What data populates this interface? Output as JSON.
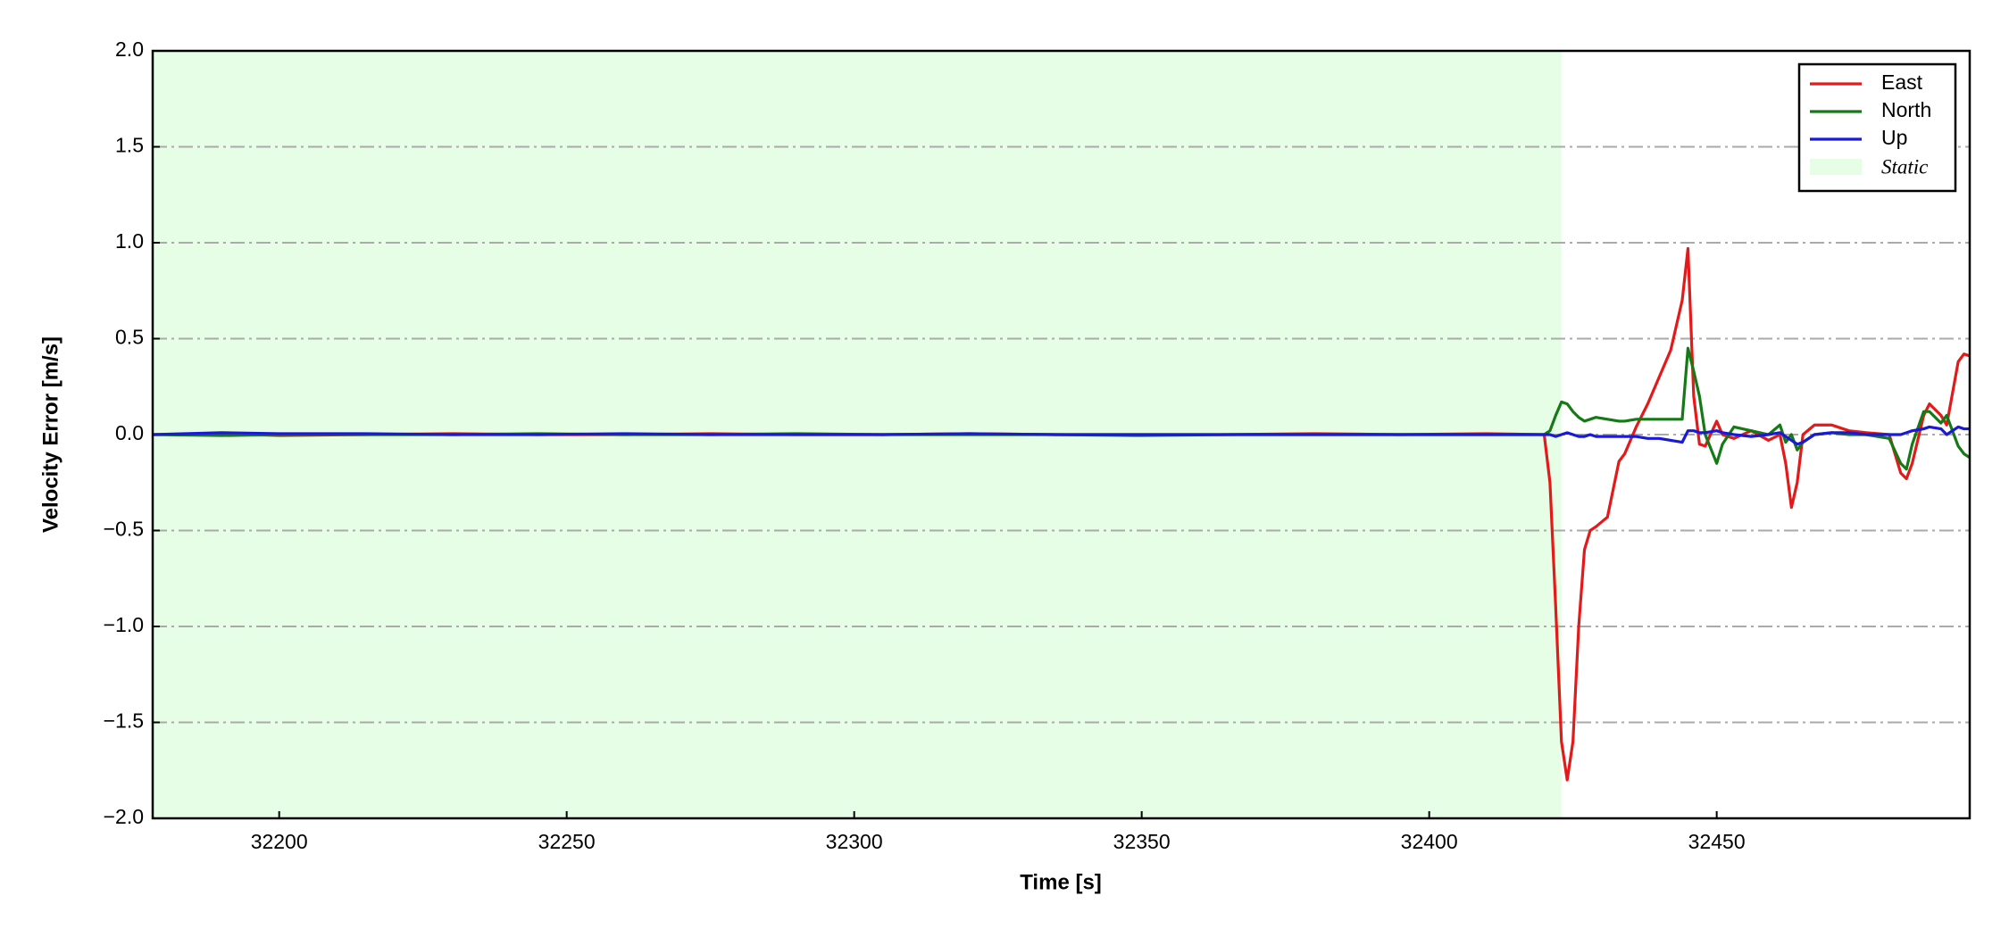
{
  "chart_data": {
    "type": "line",
    "xlabel": "Time [s]",
    "ylabel": "Velocity Error [m/s]",
    "x": [
      32178,
      32190,
      32200,
      32215,
      32230,
      32245,
      32260,
      32275,
      32290,
      32305,
      32320,
      32335,
      32350,
      32365,
      32380,
      32395,
      32410,
      32420,
      32421,
      32422,
      32423,
      32424,
      32425,
      32426,
      32427,
      32428,
      32429,
      32431,
      32433,
      32434,
      32436,
      32438,
      32440,
      32442,
      32444,
      32445,
      32446,
      32447,
      32448,
      32450,
      32451,
      32453,
      32456,
      32459,
      32461,
      32462,
      32463,
      32464,
      32465,
      32467,
      32470,
      32473,
      32476,
      32480,
      32482,
      32483,
      32484,
      32486,
      32487,
      32489,
      32490,
      32492,
      32493,
      32494
    ],
    "series": [
      {
        "name": "East",
        "color": "#e41a1a",
        "values": [
          0,
          0.005,
          -0.005,
          0,
          0.005,
          0,
          0,
          0.005,
          0,
          0,
          0.005,
          0,
          0,
          0,
          0.005,
          0,
          0.005,
          0,
          -0.25,
          -0.9,
          -1.6,
          -1.8,
          -1.6,
          -1.0,
          -0.6,
          -0.5,
          -0.48,
          -0.43,
          -0.14,
          -0.1,
          0.04,
          0.16,
          0.3,
          0.44,
          0.7,
          0.97,
          0.2,
          -0.05,
          -0.06,
          0.07,
          0,
          -0.02,
          0.02,
          -0.03,
          0,
          -0.15,
          -0.38,
          -0.25,
          0,
          0.05,
          0.05,
          0.02,
          0.01,
          0,
          -0.2,
          -0.23,
          -0.15,
          0.1,
          0.16,
          0.1,
          0.05,
          0.38,
          0.42,
          0.41
        ]
      },
      {
        "name": "North",
        "color": "#157a15",
        "values": [
          0,
          -0.005,
          0,
          0,
          0,
          0.005,
          0,
          0,
          0.005,
          0,
          0,
          0,
          -0.005,
          0,
          0,
          0,
          0,
          0,
          0.02,
          0.1,
          0.17,
          0.16,
          0.12,
          0.09,
          0.07,
          0.08,
          0.09,
          0.08,
          0.07,
          0.07,
          0.08,
          0.08,
          0.08,
          0.08,
          0.08,
          0.45,
          0.33,
          0.2,
          0,
          -0.15,
          -0.05,
          0.04,
          0.02,
          0,
          0.05,
          -0.04,
          0,
          -0.08,
          -0.04,
          0,
          0.01,
          0,
          0,
          -0.02,
          -0.15,
          -0.18,
          -0.05,
          0.12,
          0.12,
          0.06,
          0.1,
          -0.06,
          -0.1,
          -0.12
        ]
      },
      {
        "name": "Up",
        "color": "#1a1ad6",
        "values": [
          0,
          0.01,
          0.005,
          0.005,
          0,
          0,
          0.005,
          0,
          0,
          0,
          0.005,
          0,
          0,
          0,
          0,
          0,
          0,
          0,
          0,
          -0.01,
          0,
          0.01,
          0,
          -0.01,
          -0.01,
          0,
          -0.01,
          -0.01,
          -0.01,
          -0.01,
          -0.01,
          -0.02,
          -0.02,
          -0.03,
          -0.04,
          0.02,
          0.02,
          0.01,
          0.01,
          0.02,
          0.01,
          0,
          -0.01,
          0,
          0.01,
          -0.01,
          -0.03,
          -0.05,
          -0.04,
          0,
          0.01,
          0.01,
          0,
          0,
          0,
          0.01,
          0.02,
          0.03,
          0.04,
          0.03,
          0,
          0.04,
          0.03,
          0.03
        ]
      }
    ],
    "shade": {
      "label": "Static",
      "xlim": [
        32178,
        32423
      ],
      "color": "#e6fde6"
    },
    "xlim": [
      32178,
      32494
    ],
    "ylim": [
      -2,
      2
    ],
    "xticks": [
      32200,
      32250,
      32300,
      32350,
      32400,
      32450
    ],
    "yticks": [
      {
        "value": -2,
        "label": "−2.0"
      },
      {
        "value": -1.5,
        "label": "−1.5"
      },
      {
        "value": -1,
        "label": "−1.0"
      },
      {
        "value": -0.5,
        "label": "−0.5"
      },
      {
        "value": 0,
        "label": "0.0"
      },
      0.5,
      {
        "value": 1,
        "label": "1.0"
      },
      1.5,
      {
        "value": 2,
        "label": "2.0"
      }
    ],
    "grid": true,
    "legend": "upper right"
  }
}
